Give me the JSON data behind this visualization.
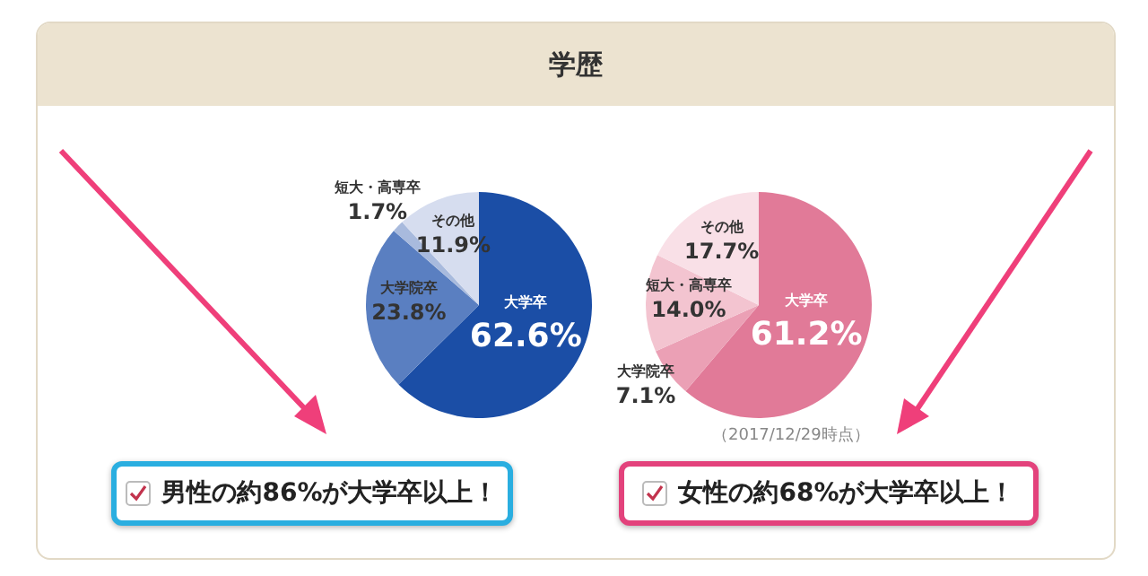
{
  "chart_data": [
    {
      "type": "pie",
      "title": "学歴",
      "categories": [
        "大学卒",
        "大学院卒",
        "短大・高専卒",
        "その他"
      ],
      "values": [
        62.6,
        23.8,
        1.7,
        11.9
      ],
      "colors": [
        "#1b4ea6",
        "#5a7fc1",
        "#a8badd",
        "#d6ddef"
      ],
      "value_labels": [
        "62.6%",
        "23.8%",
        "1.7%",
        "11.9%"
      ],
      "annotations": [
        "男性の約86%が大学卒以上！"
      ]
    },
    {
      "type": "pie",
      "categories": [
        "大学卒",
        "大学院卒",
        "短大・高専卒",
        "その他"
      ],
      "values": [
        61.2,
        7.1,
        14.0,
        17.7
      ],
      "colors": [
        "#e17a98",
        "#eba0b5",
        "#f3c4d0",
        "#f9e0e7"
      ],
      "value_labels": [
        "61.2%",
        "7.1%",
        "14.0%",
        "17.7%"
      ],
      "annotations": [
        "（2017/12/29時点）",
        "女性の約68%が大学卒以上！"
      ]
    }
  ]
}
